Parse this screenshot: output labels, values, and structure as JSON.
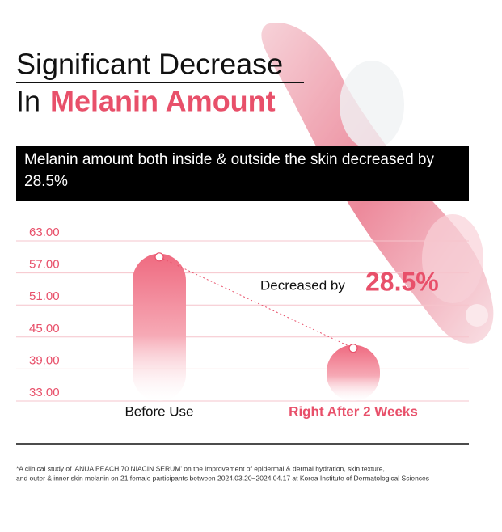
{
  "chart_data": {
    "type": "bar",
    "title_line1": "Significant Decrease",
    "title_line2_prefix": "In",
    "title_line2_highlight": "Melanin Amount",
    "subtitle": "Melanin amount both inside & outside the skin decreased by 28.5%",
    "categories": [
      "Before Use",
      "Right After 2 Weeks"
    ],
    "category_label_colors": [
      "#111111",
      "#e8506a"
    ],
    "values": [
      60.0,
      42.9
    ],
    "color": "#ef6a80",
    "ylim": [
      33,
      63
    ],
    "yticks": [
      {
        "value": 33,
        "label": "33.00"
      },
      {
        "value": 39,
        "label": "39.00"
      },
      {
        "value": 45,
        "label": "45.00"
      },
      {
        "value": 51,
        "label": "51.00"
      },
      {
        "value": 57,
        "label": "57.00"
      },
      {
        "value": 63,
        "label": "63.00"
      }
    ],
    "grid": true,
    "annotation_prefix": "Decreased by",
    "annotation_value": "28.5%",
    "footnote_line1": "*A clinical study of 'ANUA PEACH 70 NIACIN SERUM' on the improvement of epidermal & dermal hydration, skin texture,",
    "footnote_line2": "and outer & inner skin melanin on 21 female participants between 2024.03.20~2024.04.17 at Korea Institute of Dermatological Sciences"
  }
}
